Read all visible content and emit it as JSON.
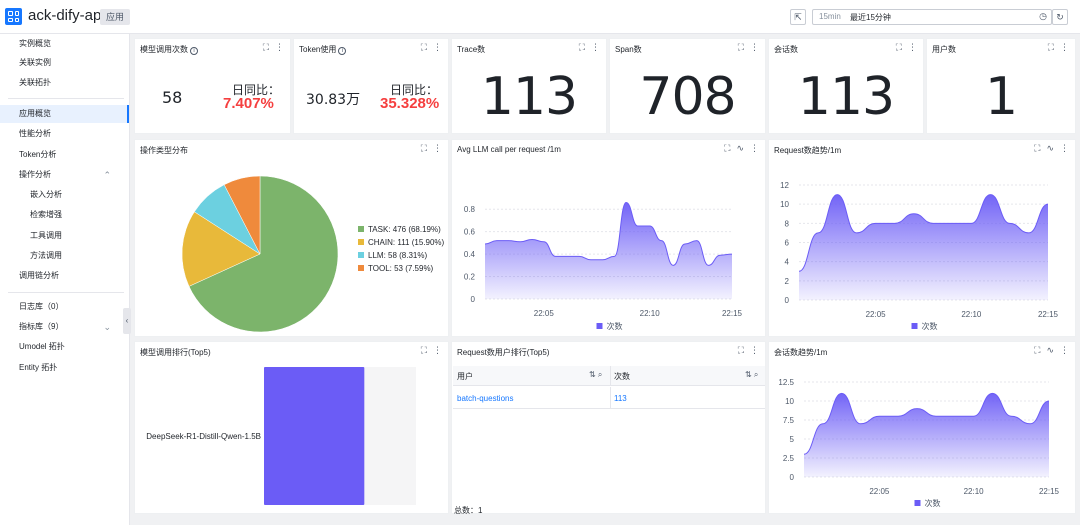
{
  "app": {
    "title": "ack-dify-api",
    "tag": "应用"
  },
  "toolbar": {
    "time_short": "15min",
    "time_label": "最近15分钟",
    "share_icon": "share-icon",
    "refresh_icon": "refresh-icon",
    "settings_icon": "clock-refresh-icon"
  },
  "sidebar": {
    "group1": [
      "实例概览",
      "关联实例",
      "关联拓扑"
    ],
    "group2": [
      {
        "label": "应用概览",
        "active": true
      },
      {
        "label": "性能分析"
      },
      {
        "label": "Token分析"
      },
      {
        "label": "操作分析",
        "expanded": true
      },
      {
        "label": "嵌入分析",
        "sub": true
      },
      {
        "label": "检索增强",
        "sub": true
      },
      {
        "label": "工具调用",
        "sub": true
      },
      {
        "label": "方法调用",
        "sub": true
      },
      {
        "label": "调用链分析"
      }
    ],
    "group3": [
      {
        "label": "日志库（0）"
      },
      {
        "label": "指标库（9）",
        "chevron": true
      },
      {
        "label": "Umodel 拓扑"
      },
      {
        "label": "Entity 拓扑"
      }
    ]
  },
  "kpis": {
    "model_calls": {
      "title": "模型调用次数",
      "value": "58",
      "compare_label": "日同比：",
      "compare_value": "7.407%"
    },
    "token_usage": {
      "title": "Token使用",
      "value": "30.83万",
      "compare_label": "日同比：",
      "compare_value": "35.328%"
    },
    "trace": {
      "title": "Trace数",
      "value": "113"
    },
    "span": {
      "title": "Span数",
      "value": "708"
    },
    "session": {
      "title": "会话数",
      "value": "113"
    },
    "users": {
      "title": "用户数",
      "value": "1"
    }
  },
  "panels": {
    "op_dist": {
      "title": "操作类型分布"
    },
    "avg_llm": {
      "title": "Avg LLM call per request /1m",
      "legend": "次数"
    },
    "req_trend": {
      "title": "Request数趋势/1m",
      "legend": "次数"
    },
    "model_rank": {
      "title": "模型调用排行(Top5)"
    },
    "user_rank": {
      "title": "Request数用户排行(Top5)",
      "col_user": "用户",
      "col_count": "次数",
      "rows": [
        {
          "user": "batch-questions",
          "count": "113"
        }
      ],
      "total_label": "总数：",
      "total": "1"
    },
    "session_trend": {
      "title": "会话数趋势/1m",
      "legend": "次数"
    }
  },
  "colors": {
    "accent": "#1677ff",
    "red": "#f53f3f",
    "series": "#6b5cf6",
    "task": "#7cb46b",
    "chain": "#e8b93a",
    "llm": "#6cd0e0",
    "tool": "#ef8a3c"
  },
  "chart_data": [
    {
      "type": "pie",
      "title": "操作类型分布",
      "slices": [
        {
          "label": "TASK: 476 (68.19%)",
          "name": "TASK",
          "value": 476,
          "percent": 68.19,
          "color": "#7cb46b"
        },
        {
          "label": "CHAIN: 111 (15.90%)",
          "name": "CHAIN",
          "value": 111,
          "percent": 15.9,
          "color": "#e8b93a"
        },
        {
          "label": "LLM: 58 (8.31%)",
          "name": "LLM",
          "value": 58,
          "percent": 8.31,
          "color": "#6cd0e0"
        },
        {
          "label": "TOOL: 53 (7.59%)",
          "name": "TOOL",
          "value": 53,
          "percent": 7.59,
          "color": "#ef8a3c"
        }
      ],
      "legend": "right"
    },
    {
      "type": "area",
      "title": "Avg LLM call per request /1m",
      "series": [
        {
          "name": "次数",
          "values": [
            0.49,
            0.52,
            0.52,
            0.51,
            0.53,
            0.51,
            0.38,
            0.38,
            0.38,
            0.35,
            0.35,
            0.38,
            0.86,
            0.65,
            0.65,
            0.52,
            0.3,
            0.49,
            0.52,
            0.3,
            0.39,
            0.4
          ]
        }
      ],
      "x": [
        "22:02",
        "22:03",
        "22:03",
        "22:04",
        "22:04",
        "22:05",
        "22:05",
        "22:06",
        "22:06",
        "22:07",
        "22:08",
        "22:08",
        "22:09",
        "22:09",
        "22:10",
        "22:10",
        "22:11",
        "22:12",
        "22:12",
        "22:13",
        "22:14",
        "22:15"
      ],
      "x_ticks": [
        "22:05",
        "22:10",
        "22:15"
      ],
      "y_ticks": [
        "0",
        "0.2",
        "0.4",
        "0.6",
        "0.8"
      ],
      "ylim": [
        0,
        0.9
      ],
      "legend": "bottom"
    },
    {
      "type": "area",
      "title": "Request数趋势/1m",
      "series": [
        {
          "name": "次数",
          "values": [
            3,
            7,
            11,
            7,
            8,
            8,
            9,
            8,
            8,
            8,
            11,
            8,
            7,
            10
          ]
        }
      ],
      "x": [
        "22:01",
        "22:02",
        "22:03",
        "22:04",
        "22:05",
        "22:06",
        "22:07",
        "22:08",
        "22:09",
        "22:10",
        "22:11",
        "22:12",
        "22:13",
        "22:15"
      ],
      "x_ticks": [
        "22:05",
        "22:10",
        "22:15"
      ],
      "y_ticks": [
        "0",
        "2",
        "4",
        "6",
        "8",
        "10",
        "12"
      ],
      "ylim": [
        0,
        12
      ],
      "legend": "bottom"
    },
    {
      "type": "bar",
      "title": "模型调用排行(Top5)",
      "categories": [
        "DeepSeek-R1-Distill-Qwen-1.5B"
      ],
      "values": [
        58
      ],
      "xlim": [
        0,
        58
      ]
    },
    {
      "type": "area",
      "title": "会话数趋势/1m",
      "series": [
        {
          "name": "次数",
          "values": [
            3,
            7,
            11,
            7,
            8,
            8,
            9,
            8,
            8,
            8,
            11,
            8,
            7,
            10
          ]
        }
      ],
      "x": [
        "22:01",
        "22:02",
        "22:03",
        "22:04",
        "22:05",
        "22:06",
        "22:07",
        "22:08",
        "22:09",
        "22:10",
        "22:11",
        "22:12",
        "22:13",
        "22:15"
      ],
      "x_ticks": [
        "22:05",
        "22:10",
        "22:15"
      ],
      "y_ticks": [
        "0",
        "2.5",
        "5",
        "7.5",
        "10",
        "12.5"
      ],
      "ylim": [
        0,
        12.5
      ],
      "legend": "bottom"
    }
  ]
}
